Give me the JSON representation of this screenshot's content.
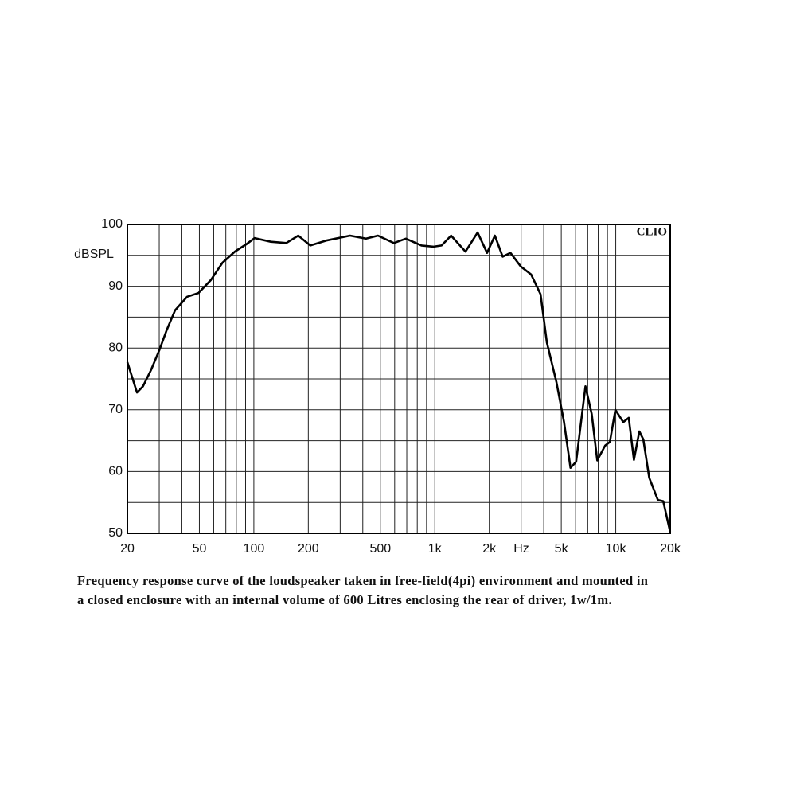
{
  "chart_data": {
    "type": "line",
    "y_label": "dBSPL",
    "x_unit": "Hz",
    "brand": "CLIO",
    "caption": [
      "Frequency response curve of the loudspeaker taken in free-field(4pi) environment and mounted in",
      "a closed enclosure  with an internal volume of 600 Litres enclosing the rear of driver, 1w/1m."
    ],
    "log_x": true,
    "xlim": [
      20,
      20000
    ],
    "ylim": [
      50,
      100
    ],
    "xticks": [
      20,
      50,
      100,
      200,
      500,
      {
        "value": 1000,
        "label": "1k"
      },
      {
        "value": 2000,
        "label": "2k"
      },
      {
        "value": 5000,
        "label": "5k"
      },
      {
        "value": 10000,
        "label": "10k"
      },
      {
        "value": 20000,
        "label": "20k"
      }
    ],
    "yticks": [
      50,
      60,
      70,
      80,
      90,
      100
    ],
    "xgrid": [
      30,
      40,
      50,
      60,
      70,
      80,
      90,
      100,
      200,
      300,
      400,
      500,
      600,
      700,
      800,
      900,
      1000,
      2000,
      3000,
      4000,
      5000,
      6000,
      7000,
      8000,
      9000,
      10000
    ],
    "ygrid": [
      55,
      60,
      65,
      70,
      75,
      80,
      85,
      90,
      95
    ],
    "color": "#000000",
    "x": [
      20,
      22.6,
      24.4,
      27,
      30,
      33,
      36.7,
      42.8,
      49.4,
      57.9,
      67,
      78.5,
      91.8,
      101,
      124,
      151,
      176,
      205,
      251,
      340,
      417,
      485,
      594,
      692,
      844,
      986,
      1090,
      1230,
      1478,
      1724,
      1945,
      2147,
      2371,
      2619,
      2988,
      3410,
      3840,
      4160,
      4700,
      5180,
      5620,
      6040,
      6800,
      7370,
      7900,
      8730,
      9280,
      9950,
      11000,
      11800,
      12600,
      13500,
      14200,
      15300,
      17100,
      18300,
      19950
    ],
    "values": [
      77.7,
      72.8,
      73.8,
      76.4,
      79.6,
      82.9,
      86.1,
      88.3,
      88.9,
      91.0,
      93.8,
      95.6,
      96.9,
      97.8,
      97.2,
      97.0,
      98.2,
      96.6,
      97.4,
      98.2,
      97.7,
      98.2,
      97.0,
      97.7,
      96.6,
      96.4,
      96.6,
      98.2,
      95.6,
      98.7,
      95.4,
      98.2,
      94.8,
      95.4,
      93.2,
      91.9,
      88.7,
      80.9,
      74.5,
      68.0,
      60.6,
      61.6,
      73.8,
      69.3,
      61.8,
      64.2,
      64.8,
      70.0,
      68.0,
      68.7,
      61.9,
      66.5,
      65.2,
      59.0,
      55.4,
      55.2,
      50.3
    ]
  }
}
